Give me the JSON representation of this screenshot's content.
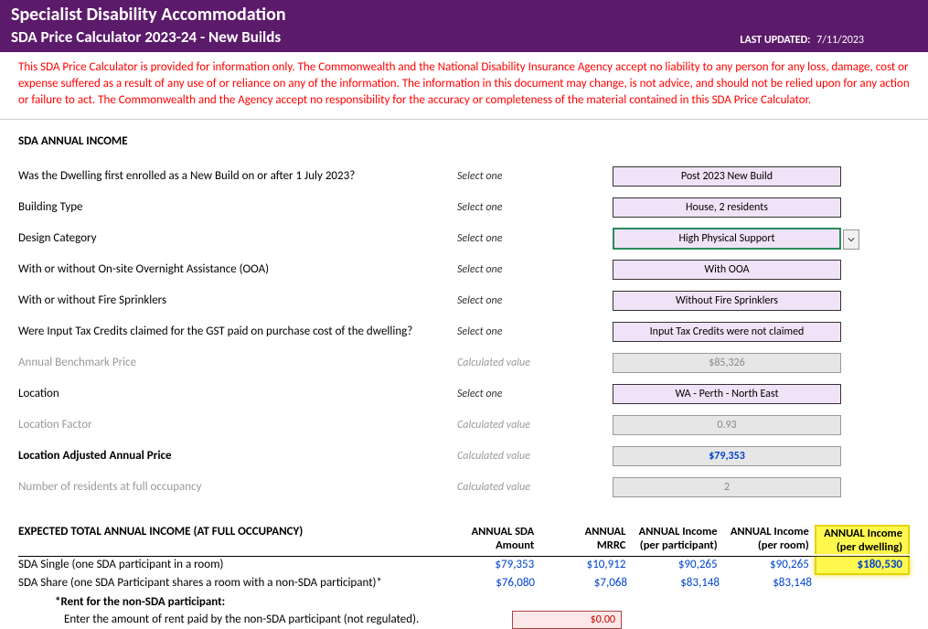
{
  "header": {
    "title": "Specialist Disability Accommodation",
    "subtitle": "SDA Price Calculator 2023-24 - New Builds",
    "last_updated_label": "LAST UPDATED:",
    "last_updated_date": "7/11/2023"
  },
  "disclaimer": "This SDA Price Calculator is provided for information only.  The Commonwealth and the National Disability Insurance Agency accept no liability to any person for any loss, damage, cost or expense suffered as a result of any use of or reliance on any of the information.  The information in this document may change, is not advice, and should not be relied upon for any action or failure to act. The Commonwealth and the Agency accept no responsibility for the accuracy or completeness of the material contained in this SDA Price Calculator.",
  "section_title": "SDA ANNUAL INCOME",
  "hints": {
    "select": "Select one",
    "calc": "Calculated value"
  },
  "rows": {
    "enrolled": {
      "label": "Was the Dwelling first enrolled as a New Build on or after 1 July 2023?",
      "value": "Post 2023 New Build"
    },
    "building_type": {
      "label": "Building Type",
      "value": "House, 2 residents"
    },
    "design_category": {
      "label": "Design Category",
      "value": "High Physical Support"
    },
    "ooa": {
      "label": "With or without On-site Overnight Assistance (OOA)",
      "value": "With OOA"
    },
    "fire": {
      "label": "With or without Fire Sprinklers",
      "value": "Without Fire Sprinklers"
    },
    "tax_credits": {
      "label": "Were Input Tax Credits claimed for the GST paid on purchase cost of the dwelling?",
      "value": "Input Tax Credits were not claimed"
    },
    "benchmark": {
      "label": "Annual Benchmark Price",
      "value": "$85,326"
    },
    "location": {
      "label": "Location",
      "value": "WA - Perth - North East"
    },
    "location_factor": {
      "label": "Location Factor",
      "value": "0.93"
    },
    "adjusted_price": {
      "label": "Location Adjusted Annual Price",
      "value": "$79,353"
    },
    "residents": {
      "label": "Number of residents at full occupancy",
      "value": "2"
    }
  },
  "income": {
    "title": "EXPECTED TOTAL ANNUAL INCOME (AT FULL OCCUPANCY)",
    "headers": {
      "sda": "ANNUAL SDA Amount",
      "mrrc": "ANNUAL MRRC",
      "per_participant": "ANNUAL Income (per participant)",
      "per_room": "ANNUAL Income (per room)",
      "per_dwelling": "ANNUAL Income (per dwelling)"
    },
    "single": {
      "label": "SDA Single (one SDA participant in a room)",
      "sda": "$79,353",
      "mrrc": "$10,912",
      "per_participant": "$90,265",
      "per_room": "$90,265",
      "per_dwelling": "$180,530"
    },
    "share": {
      "label": "SDA Share (one SDA Participant shares a room with a non-SDA participant)*",
      "sda": "$76,080",
      "mrrc": "$7,068",
      "per_participant": "$83,148",
      "per_room": "$83,148"
    },
    "rent_note_bold": "*Rent for the non-SDA participant:",
    "rent_note_text": "Enter the amount of rent paid by the non-SDA participant (not regulated).",
    "rent_value": "$0.00"
  }
}
